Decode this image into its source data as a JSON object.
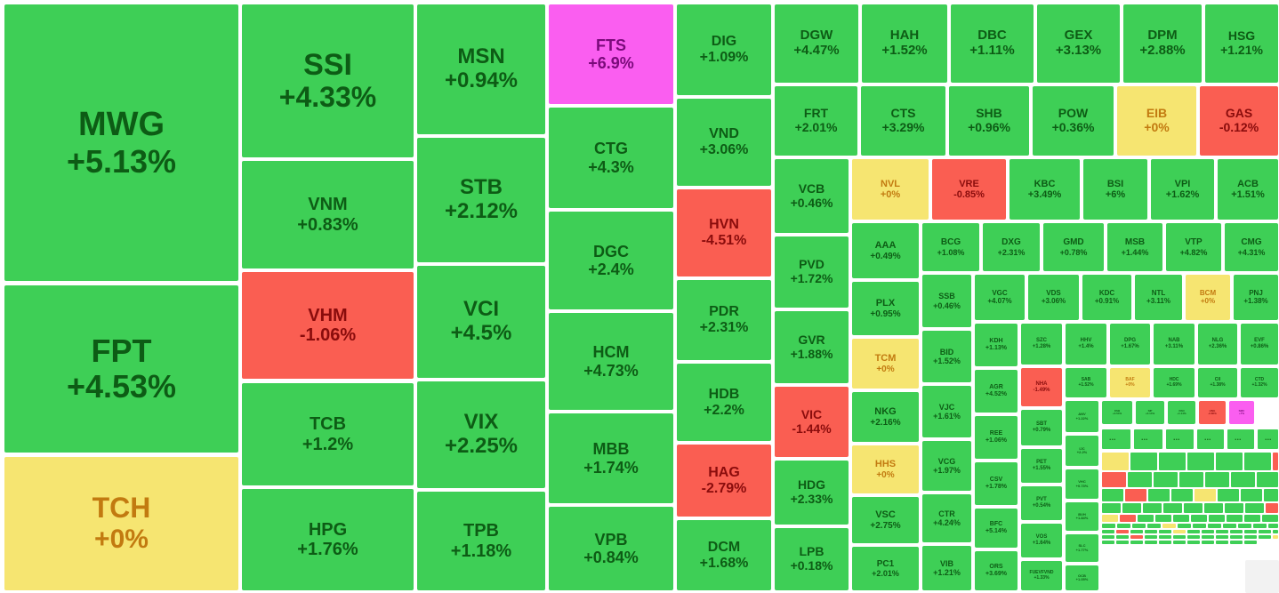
{
  "colors": {
    "up": "#3ecf56",
    "up_text": "#0d5c15",
    "ref": "#f6e571",
    "ref_text": "#c27a10",
    "down": "#fa5e52",
    "down_text": "#8a0c0c",
    "ceiling": "#fa5ef0",
    "ceiling_text": "#7a0a7a"
  },
  "ellipsis": "...",
  "chart_data": {
    "type": "treemap",
    "title": "",
    "unit": "%",
    "tiles": [
      {
        "symbol": "MWG",
        "change": "+5.13%",
        "status": "up"
      },
      {
        "symbol": "FPT",
        "change": "+4.53%",
        "status": "up"
      },
      {
        "symbol": "TCH",
        "change": "+0%",
        "status": "ref"
      },
      {
        "symbol": "SSI",
        "change": "+4.33%",
        "status": "up"
      },
      {
        "symbol": "VNM",
        "change": "+0.83%",
        "status": "up"
      },
      {
        "symbol": "VHM",
        "change": "-1.06%",
        "status": "down"
      },
      {
        "symbol": "TCB",
        "change": "+1.2%",
        "status": "up"
      },
      {
        "symbol": "HPG",
        "change": "+1.76%",
        "status": "up"
      },
      {
        "symbol": "MSN",
        "change": "+0.94%",
        "status": "up"
      },
      {
        "symbol": "STB",
        "change": "+2.12%",
        "status": "up"
      },
      {
        "symbol": "VCI",
        "change": "+4.5%",
        "status": "up"
      },
      {
        "symbol": "VIX",
        "change": "+2.25%",
        "status": "up"
      },
      {
        "symbol": "TPB",
        "change": "+1.18%",
        "status": "up"
      },
      {
        "symbol": "FTS",
        "change": "+6.9%",
        "status": "ceiling"
      },
      {
        "symbol": "CTG",
        "change": "+4.3%",
        "status": "up"
      },
      {
        "symbol": "DGC",
        "change": "+2.4%",
        "status": "up"
      },
      {
        "symbol": "HCM",
        "change": "+4.73%",
        "status": "up"
      },
      {
        "symbol": "MBB",
        "change": "+1.74%",
        "status": "up"
      },
      {
        "symbol": "VPB",
        "change": "+0.84%",
        "status": "up"
      },
      {
        "symbol": "DIG",
        "change": "+1.09%",
        "status": "up"
      },
      {
        "symbol": "VND",
        "change": "+3.06%",
        "status": "up"
      },
      {
        "symbol": "HVN",
        "change": "-4.51%",
        "status": "down"
      },
      {
        "symbol": "PDR",
        "change": "+2.31%",
        "status": "up"
      },
      {
        "symbol": "HDB",
        "change": "+2.2%",
        "status": "up"
      },
      {
        "symbol": "HAG",
        "change": "-2.79%",
        "status": "down"
      },
      {
        "symbol": "DCM",
        "change": "+1.68%",
        "status": "up"
      },
      {
        "symbol": "DGW",
        "change": "+4.47%",
        "status": "up"
      },
      {
        "symbol": "HAH",
        "change": "+1.52%",
        "status": "up"
      },
      {
        "symbol": "DBC",
        "change": "+1.11%",
        "status": "up"
      },
      {
        "symbol": "GEX",
        "change": "+3.13%",
        "status": "up"
      },
      {
        "symbol": "DPM",
        "change": "+2.88%",
        "status": "up"
      },
      {
        "symbol": "HSG",
        "change": "+1.21%",
        "status": "up"
      },
      {
        "symbol": "FRT",
        "change": "+2.01%",
        "status": "up"
      },
      {
        "symbol": "CTS",
        "change": "+3.29%",
        "status": "up"
      },
      {
        "symbol": "SHB",
        "change": "+0.96%",
        "status": "up"
      },
      {
        "symbol": "POW",
        "change": "+0.36%",
        "status": "up"
      },
      {
        "symbol": "EIB",
        "change": "+0%",
        "status": "ref"
      },
      {
        "symbol": "GAS",
        "change": "-0.12%",
        "status": "down"
      },
      {
        "symbol": "VCB",
        "change": "+0.46%",
        "status": "up"
      },
      {
        "symbol": "NVL",
        "change": "+0%",
        "status": "ref"
      },
      {
        "symbol": "VRE",
        "change": "-0.85%",
        "status": "down"
      },
      {
        "symbol": "KBC",
        "change": "+3.49%",
        "status": "up"
      },
      {
        "symbol": "BSI",
        "change": "+6%",
        "status": "up"
      },
      {
        "symbol": "VPI",
        "change": "+1.62%",
        "status": "up"
      },
      {
        "symbol": "ACB",
        "change": "+1.51%",
        "status": "up"
      },
      {
        "symbol": "PVD",
        "change": "+1.72%",
        "status": "up"
      },
      {
        "symbol": "GVR",
        "change": "+1.88%",
        "status": "up"
      },
      {
        "symbol": "VIC",
        "change": "-1.44%",
        "status": "down"
      },
      {
        "symbol": "HDG",
        "change": "+2.33%",
        "status": "up"
      },
      {
        "symbol": "LPB",
        "change": "+0.18%",
        "status": "up"
      },
      {
        "symbol": "AAA",
        "change": "+0.49%",
        "status": "up"
      },
      {
        "symbol": "BCG",
        "change": "+1.08%",
        "status": "up"
      },
      {
        "symbol": "DXG",
        "change": "+2.31%",
        "status": "up"
      },
      {
        "symbol": "GMD",
        "change": "+0.78%",
        "status": "up"
      },
      {
        "symbol": "MSB",
        "change": "+1.44%",
        "status": "up"
      },
      {
        "symbol": "VTP",
        "change": "+4.82%",
        "status": "up"
      },
      {
        "symbol": "CMG",
        "change": "+4.31%",
        "status": "up"
      },
      {
        "symbol": "PLX",
        "change": "+0.95%",
        "status": "up"
      },
      {
        "symbol": "TCM",
        "change": "+0%",
        "status": "ref"
      },
      {
        "symbol": "NKG",
        "change": "+2.16%",
        "status": "up"
      },
      {
        "symbol": "HHS",
        "change": "+0%",
        "status": "ref"
      },
      {
        "symbol": "VSC",
        "change": "+2.75%",
        "status": "up"
      },
      {
        "symbol": "PC1",
        "change": "+2.01%",
        "status": "up"
      },
      {
        "symbol": "SSB",
        "change": "+0.46%",
        "status": "up"
      },
      {
        "symbol": "BID",
        "change": "+1.52%",
        "status": "up"
      },
      {
        "symbol": "VJC",
        "change": "+1.61%",
        "status": "up"
      },
      {
        "symbol": "VCG",
        "change": "+1.97%",
        "status": "up"
      },
      {
        "symbol": "CTR",
        "change": "+4.24%",
        "status": "up"
      },
      {
        "symbol": "VIB",
        "change": "+1.21%",
        "status": "up"
      },
      {
        "symbol": "VGC",
        "change": "+4.07%",
        "status": "up"
      },
      {
        "symbol": "VDS",
        "change": "+3.06%",
        "status": "up"
      },
      {
        "symbol": "KDC",
        "change": "+0.91%",
        "status": "up"
      },
      {
        "symbol": "NTL",
        "change": "+3.11%",
        "status": "up"
      },
      {
        "symbol": "BCM",
        "change": "+0%",
        "status": "ref"
      },
      {
        "symbol": "PNJ",
        "change": "+1.38%",
        "status": "up"
      },
      {
        "symbol": "KDH",
        "change": "+1.13%",
        "status": "up"
      },
      {
        "symbol": "AGR",
        "change": "+4.52%",
        "status": "up"
      },
      {
        "symbol": "REE",
        "change": "+1.06%",
        "status": "up"
      },
      {
        "symbol": "CSV",
        "change": "+1.78%",
        "status": "up"
      },
      {
        "symbol": "BFC",
        "change": "+5.14%",
        "status": "up"
      },
      {
        "symbol": "ORS",
        "change": "+3.69%",
        "status": "up"
      },
      {
        "symbol": "SZC",
        "change": "+1.28%",
        "status": "up"
      },
      {
        "symbol": "HHV",
        "change": "+1.4%",
        "status": "up"
      },
      {
        "symbol": "DPG",
        "change": "+1.67%",
        "status": "up"
      },
      {
        "symbol": "NAB",
        "change": "+3.11%",
        "status": "up"
      },
      {
        "symbol": "NLG",
        "change": "+2.36%",
        "status": "up"
      },
      {
        "symbol": "EVF",
        "change": "+0.86%",
        "status": "up"
      },
      {
        "symbol": "NHA",
        "change": "-1.49%",
        "status": "down"
      },
      {
        "symbol": "SAB",
        "change": "+1.52%",
        "status": "up"
      },
      {
        "symbol": "BAF",
        "change": "+0%",
        "status": "ref"
      },
      {
        "symbol": "HDC",
        "change": "+1.69%",
        "status": "up"
      },
      {
        "symbol": "CII",
        "change": "+1.38%",
        "status": "up"
      },
      {
        "symbol": "CTD",
        "change": "+1.32%",
        "status": "up"
      },
      {
        "symbol": "SBT",
        "change": "+0.79%",
        "status": "up"
      },
      {
        "symbol": "PET",
        "change": "+1.55%",
        "status": "up"
      },
      {
        "symbol": "PVT",
        "change": "+0.54%",
        "status": "up"
      },
      {
        "symbol": "VOS",
        "change": "+1.64%",
        "status": "up"
      },
      {
        "symbol": "FUEVFVND",
        "change": "+1.33%",
        "status": "up"
      },
      {
        "symbol": "ANV",
        "change": "+1.22%",
        "status": "up"
      },
      {
        "symbol": "KSB",
        "change": "+0.54%",
        "status": "up"
      },
      {
        "symbol": "SIP",
        "change": "+0.14%",
        "status": "up"
      },
      {
        "symbol": "PAN",
        "change": "+1.14%",
        "status": "up"
      },
      {
        "symbol": "HNG",
        "change": "-2.86%",
        "status": "down"
      },
      {
        "symbol": "SMC",
        "change": "+7%",
        "status": "ceiling"
      },
      {
        "symbol": "IJC",
        "change": "+2.2%",
        "status": "up"
      },
      {
        "symbol": "VHC",
        "change": "+0.73%",
        "status": "up"
      },
      {
        "symbol": "BVH",
        "change": "+1.84%",
        "status": "up"
      },
      {
        "symbol": "SLC",
        "change": "+1.77%",
        "status": "up"
      },
      {
        "symbol": "OCB",
        "change": "+1.05%",
        "status": "up"
      }
    ],
    "overflow_tiles": [
      "up",
      "up",
      "up",
      "up",
      "up",
      "up",
      "ref",
      "up",
      "up",
      "up",
      "up",
      "up",
      "down",
      "down",
      "up",
      "up",
      "up",
      "up",
      "up",
      "up",
      "up",
      "down",
      "up",
      "up",
      "ref",
      "up",
      "up",
      "up",
      "up",
      "up",
      "up",
      "up",
      "up",
      "up",
      "up",
      "up",
      "down",
      "ref",
      "down",
      "up",
      "up",
      "up",
      "up",
      "up",
      "up",
      "up",
      "up",
      "up",
      "up",
      "up",
      "up",
      "ref",
      "up",
      "up",
      "up",
      "up",
      "up",
      "up",
      "up",
      "up",
      "down",
      "up",
      "up",
      "up",
      "ref",
      "up",
      "up",
      "up",
      "up",
      "up",
      "up",
      "up",
      "up",
      "up",
      "down",
      "up",
      "up",
      "up",
      "up",
      "up",
      "up",
      "up",
      "up",
      "up",
      "ref",
      "up",
      "up",
      "up",
      "up",
      "up",
      "up",
      "up",
      "up",
      "up",
      "up",
      "up"
    ]
  }
}
